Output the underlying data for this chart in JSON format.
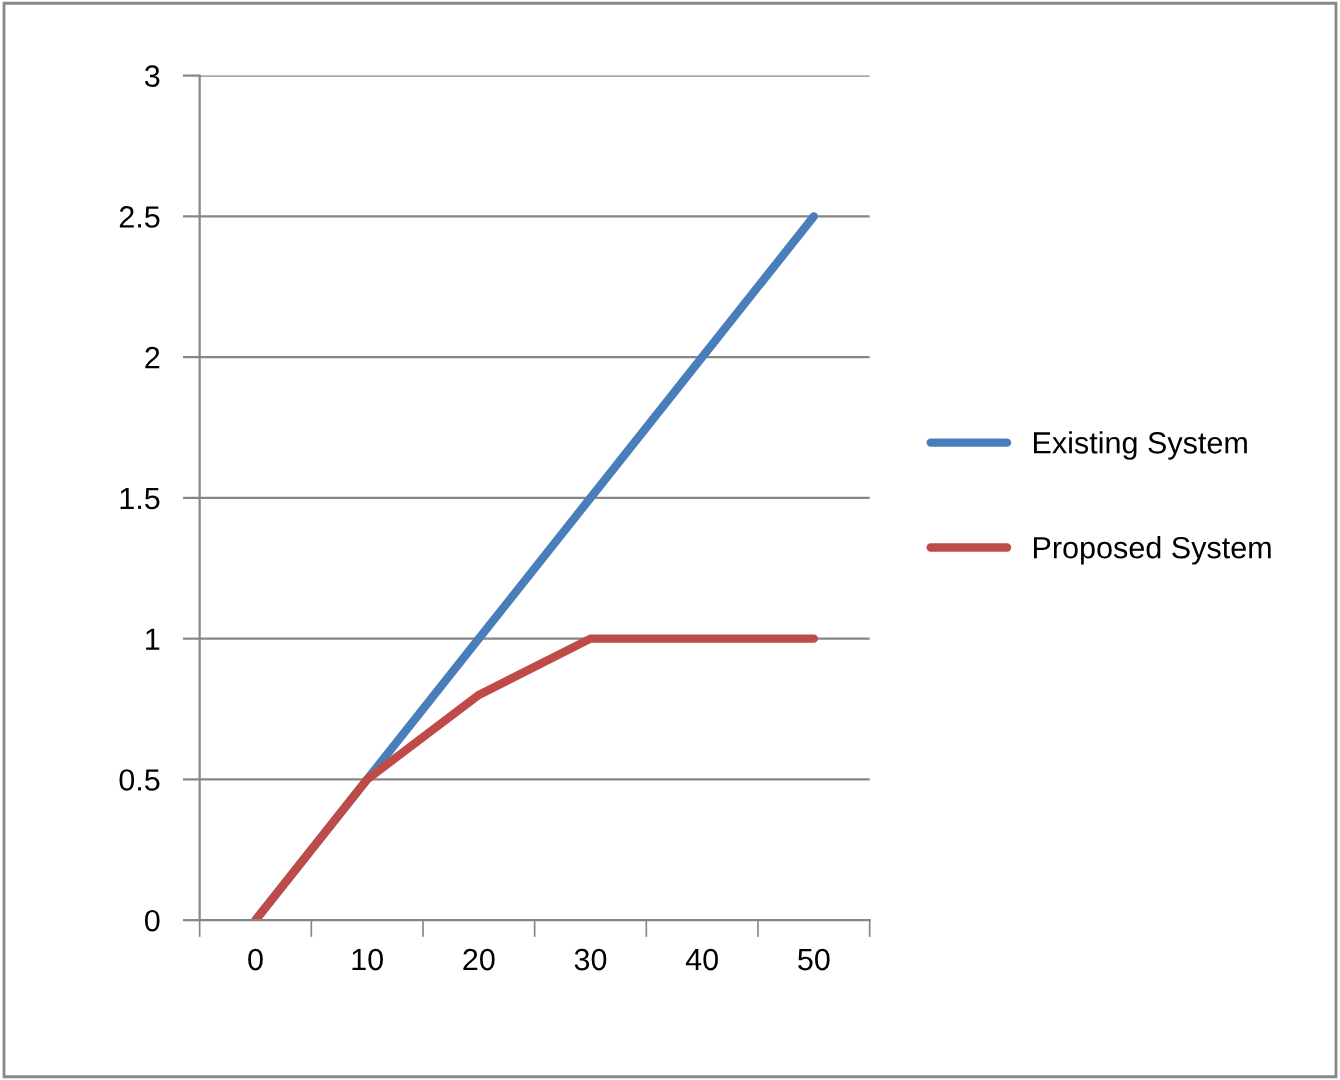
{
  "chart_data": {
    "type": "line",
    "categories": [
      "0",
      "10",
      "20",
      "30",
      "40",
      "50"
    ],
    "series": [
      {
        "name": "Existing System",
        "color": "#4a7ebb",
        "values": [
          0,
          0.5,
          1,
          1.5,
          2,
          2.5
        ]
      },
      {
        "name": "Proposed System",
        "color": "#be4b48",
        "values": [
          0,
          0.5,
          0.8,
          1,
          1,
          1
        ]
      }
    ],
    "ylim": [
      0,
      3
    ],
    "yticks": [
      0,
      0.5,
      1,
      1.5,
      2,
      2.5,
      3
    ],
    "grid": "y",
    "legend": "right",
    "marker": "none",
    "line_style": "solid"
  }
}
